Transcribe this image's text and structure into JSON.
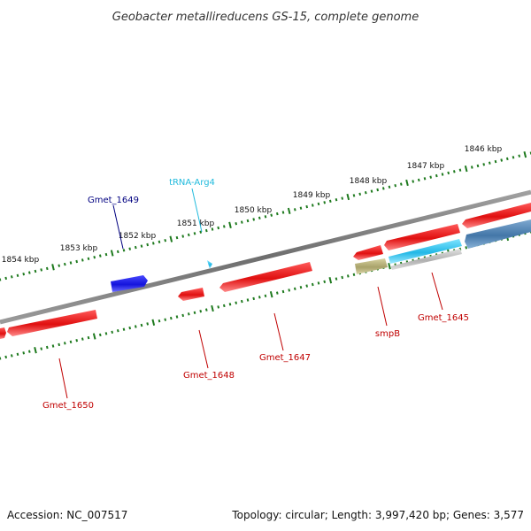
{
  "title": "Geobacter metallireducens GS-15, complete genome",
  "colors": {
    "backbone": "#7a7a7a",
    "ticks": "#1e7a1e",
    "gene_red": "#e01010",
    "gene_blue": "#1414dc",
    "trna": "#33bbdd",
    "smpb_tan": "#b8b27a",
    "steel_blue": "#4f86b8",
    "grey_feature": "#b9b9b9",
    "label_red": "#c00000",
    "label_navy": "#000080",
    "label_cyan": "#22bbdd"
  },
  "kbp_labels": [
    "1846 kbp",
    "1847 kbp",
    "1848 kbp",
    "1849 kbp",
    "1850 kbp",
    "1851 kbp",
    "1852 kbp",
    "1853 kbp",
    "1854 kbp"
  ],
  "features": [
    {
      "name": "Gmet_1645",
      "color": "label_red"
    },
    {
      "name": "smpB",
      "color": "label_red"
    },
    {
      "name": "Gmet_1647",
      "color": "label_red"
    },
    {
      "name": "Gmet_1648",
      "color": "label_red"
    },
    {
      "name": "Gmet_1649",
      "color": "label_navy"
    },
    {
      "name": "tRNA-Arg4",
      "color": "label_cyan"
    },
    {
      "name": "Gmet_1650",
      "color": "label_red"
    }
  ],
  "footer": {
    "accession": "Accession: NC_007517",
    "topology": "Topology: circular; Length: 3,997,420 bp; Genes: 3,577"
  }
}
